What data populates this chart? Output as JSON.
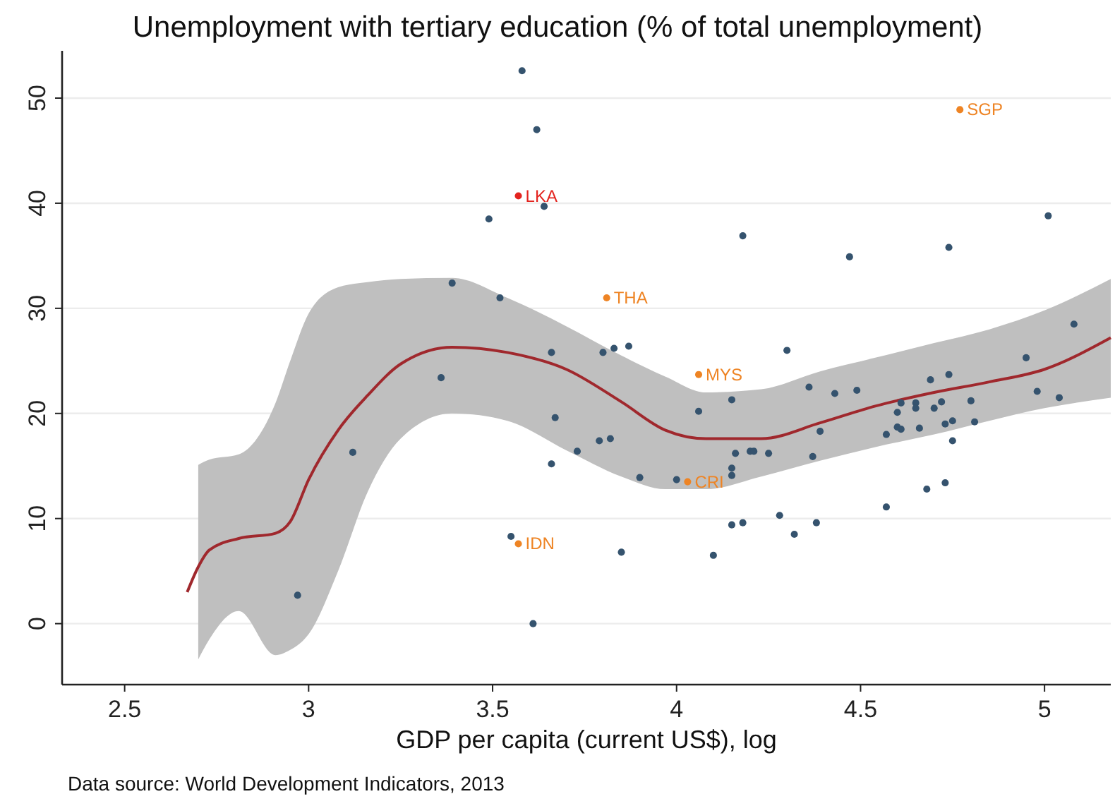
{
  "chart_data": {
    "type": "scatter",
    "title": "Unemployment with tertiary education (% of total unemployment)",
    "xlabel": "GDP per capita (current US$), log",
    "xlim": [
      2.33,
      5.18
    ],
    "xticks": [
      2.5,
      3,
      3.5,
      4,
      4.5,
      5
    ],
    "ylim": [
      -5.8,
      54.5
    ],
    "yticks": [
      0,
      10,
      20,
      30,
      40,
      50
    ],
    "grid": "y",
    "marker": "circle",
    "series": [
      {
        "type": "line",
        "marker": "none",
        "color": "#a0282d",
        "x": [
          2.67,
          2.7,
          2.73,
          2.81,
          2.91,
          2.95,
          3.0,
          3.08,
          3.16,
          3.25,
          3.39,
          3.54,
          3.7,
          3.85,
          3.97,
          4.08,
          4.23,
          4.39,
          4.54,
          4.7,
          4.85,
          5.0,
          5.18
        ],
        "values": [
          3,
          5.4,
          7,
          8.1,
          8.6,
          9.7,
          13.7,
          18.4,
          21.7,
          24.7,
          26.3,
          25.8,
          24.2,
          21.1,
          18.4,
          17.6,
          17.6,
          19.1,
          20.7,
          22,
          23,
          24.2,
          27.2
        ],
        "lower": [
          null,
          -3.4,
          -1.5,
          1.2,
          -3,
          -2.5,
          -1,
          5,
          12.5,
          17.6,
          20,
          19.3,
          16.5,
          14,
          12.8,
          12.8,
          14,
          15.5,
          16.8,
          18,
          19.3,
          20.5,
          21.5
        ],
        "upper": [
          null,
          15.1,
          15.6,
          16.1,
          21,
          25,
          29.5,
          32,
          32.5,
          32.8,
          32.9,
          31,
          28.3,
          25.5,
          23.5,
          22,
          22.3,
          24,
          25.3,
          26.7,
          28,
          29.8,
          32.8
        ]
      },
      {
        "color": "#35536e",
        "x": [
          3.58,
          3.62,
          3.64,
          3.49,
          3.39,
          3.52,
          3.66,
          3.36,
          5.01,
          4.18,
          4.47,
          4.74,
          3.8,
          3.83,
          3.87,
          4.3,
          4.95,
          5.08,
          3.67,
          3.12,
          3.73,
          3.66,
          3.55,
          2.97,
          3.61,
          4.36,
          4.43,
          4.49,
          4.69,
          4.74,
          4.15,
          4.06,
          4.98,
          5.04,
          4.61,
          4.65,
          4.6,
          4.65,
          4.7,
          4.72,
          4.8,
          4.6,
          4.61,
          4.57,
          4.66,
          4.73,
          4.75,
          4.81,
          4.75,
          4.39,
          3.79,
          3.82,
          4.16,
          4.2,
          4.21,
          4.25,
          4.37,
          4.15,
          4.15,
          3.9,
          4.0,
          4.68,
          4.73,
          4.57,
          4.28,
          4.15,
          4.18,
          4.38,
          4.32,
          3.85,
          4.1
        ],
        "values": [
          52.6,
          47,
          39.7,
          38.5,
          32.4,
          31,
          25.8,
          23.4,
          38.8,
          36.9,
          34.9,
          35.8,
          25.8,
          26.2,
          26.4,
          26,
          25.3,
          28.5,
          19.6,
          16.3,
          16.4,
          15.2,
          8.3,
          2.7,
          0,
          22.5,
          21.9,
          22.2,
          23.2,
          23.7,
          21.3,
          20.2,
          22.1,
          21.5,
          21,
          21,
          20.1,
          20.5,
          20.5,
          21.1,
          21.2,
          18.7,
          18.5,
          18,
          18.6,
          19,
          19.3,
          19.2,
          17.4,
          18.3,
          17.4,
          17.6,
          16.2,
          16.4,
          16.4,
          16.2,
          15.9,
          14.8,
          14.1,
          13.9,
          13.7,
          12.8,
          13.4,
          11.1,
          10.3,
          9.4,
          9.6,
          9.6,
          8.5,
          6.8,
          6.5
        ]
      },
      {
        "color": "#ee8424",
        "x": [
          4.77,
          3.81,
          4.06,
          4.03,
          3.57
        ],
        "values": [
          48.9,
          31,
          23.7,
          13.5,
          7.6
        ]
      },
      {
        "color": "#e3241f",
        "x": [
          3.57
        ],
        "values": [
          40.7
        ]
      }
    ],
    "annotations": [
      {
        "text": "LKA",
        "x": 3.57,
        "y": 40.7
      },
      {
        "text": "SGP",
        "x": 4.77,
        "y": 48.9
      },
      {
        "text": "THA",
        "x": 3.81,
        "y": 31
      },
      {
        "text": "MYS",
        "x": 4.06,
        "y": 23.7
      },
      {
        "text": "CRI",
        "x": 4.03,
        "y": 13.5
      },
      {
        "text": "IDN",
        "x": 3.57,
        "y": 7.6
      },
      "Data source: World Development Indicators, 2013"
    ]
  }
}
